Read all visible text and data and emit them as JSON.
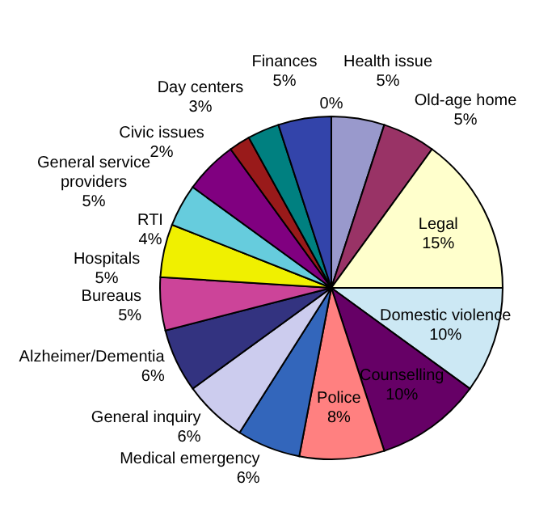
{
  "chart_data": {
    "type": "pie",
    "categories": [
      null,
      "Health issue",
      "Old-age home",
      "Legal",
      "Domestic violence",
      "Counselling",
      "Police",
      "Medical emergency",
      "General inquiry",
      "Alzheimer/Dementia",
      "Bureaus",
      "Hospitals",
      "RTI",
      "General service providers",
      "Civic issues",
      "Day centers",
      "Finances"
    ],
    "values": [
      0,
      5,
      5,
      15,
      10,
      10,
      8,
      6,
      6,
      6,
      5,
      5,
      4,
      5,
      2,
      3,
      5
    ],
    "value_labels": [
      "0%",
      "5%",
      "5%",
      "15%",
      "10%",
      "10%",
      "8%",
      "6%",
      "6%",
      "6%",
      "5%",
      "5%",
      "4%",
      "5%",
      "2%",
      "3%",
      "5%"
    ],
    "colors": [
      "#9999cc",
      "#9999cc",
      "#993366",
      "#ffffcc",
      "#cce8f4",
      "#660066",
      "#ff8080",
      "#3366bb",
      "#ccccee",
      "#333380",
      "#cc4499",
      "#f0f000",
      "#66ccdd",
      "#800080",
      "#991a1a",
      "#008080",
      "#3344aa"
    ]
  }
}
